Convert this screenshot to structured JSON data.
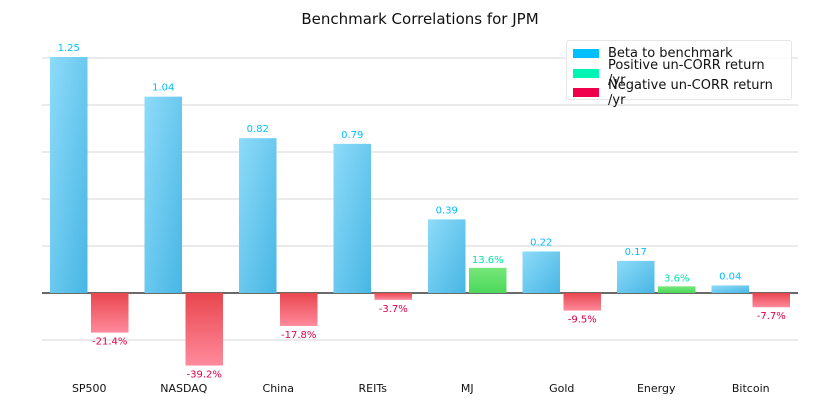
{
  "chart_data": {
    "type": "bar",
    "title": "Benchmark Correlations for JPM",
    "xlabel": "",
    "ylabel": "",
    "categories": [
      "SP500",
      "NASDAQ",
      "China",
      "REITs",
      "MJ",
      "Gold",
      "Energy",
      "Bitcoin"
    ],
    "series": [
      {
        "name": "Beta to benchmark",
        "color": "#00BFFF",
        "values": [
          1.25,
          1.04,
          0.82,
          0.79,
          0.39,
          0.22,
          0.17,
          0.04
        ],
        "labels": [
          "1.25",
          "1.04",
          "0.82",
          "0.79",
          "0.39",
          "0.22",
          "0.17",
          "0.04"
        ]
      },
      {
        "name": "Un-CORR return /yr",
        "values": [
          -21.4,
          -39.2,
          -17.8,
          -3.7,
          13.6,
          -9.5,
          3.6,
          -7.7
        ],
        "labels": [
          "-21.4%",
          "-39.2%",
          "-17.8%",
          "-3.7%",
          "13.6%",
          "-9.5%",
          "3.6%",
          "-7.7%"
        ]
      }
    ],
    "legend": {
      "position": "top-right",
      "entries": [
        {
          "label": "Beta to benchmark",
          "color": "#00BFFF"
        },
        {
          "label": "Positive un-CORR return /yr",
          "color": "#00F5B5"
        },
        {
          "label": "Negative un-CORR return /yr",
          "color": "#F0004A"
        }
      ]
    },
    "colors": {
      "beta_label": "#00BFFF",
      "positive_label": "#00E5A8",
      "negative_label": "#E0004A"
    },
    "grid": true
  }
}
